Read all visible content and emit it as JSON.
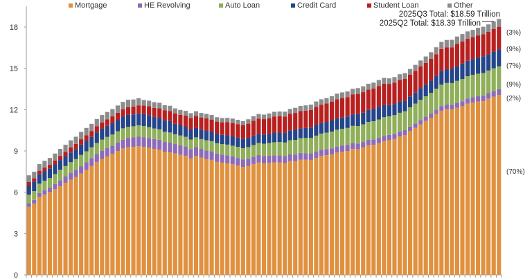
{
  "chart_data": {
    "type": "bar",
    "stacked": true,
    "title": "",
    "xlabel": "",
    "ylabel": "",
    "ylim": [
      0,
      19.5
    ],
    "yticks": [
      "0",
      "3",
      "6",
      "9",
      "12",
      "15",
      "18"
    ],
    "grid": false,
    "legend_position": "top",
    "series": [
      {
        "name": "Mortgage",
        "color": "#E0913F",
        "values": [
          4.94,
          5.18,
          5.66,
          5.84,
          6.0,
          6.22,
          6.44,
          6.68,
          6.9,
          7.1,
          7.36,
          7.62,
          7.9,
          8.2,
          8.4,
          8.6,
          8.78,
          9.0,
          9.18,
          9.27,
          9.3,
          9.35,
          9.29,
          9.23,
          9.15,
          9.1,
          8.95,
          8.9,
          8.82,
          8.73,
          8.64,
          8.45,
          8.64,
          8.52,
          8.4,
          8.35,
          8.2,
          8.15,
          8.1,
          8.03,
          7.93,
          7.84,
          7.9,
          8.05,
          8.17,
          8.1,
          8.13,
          8.17,
          8.17,
          8.12,
          8.26,
          8.25,
          8.37,
          8.36,
          8.35,
          8.48,
          8.63,
          8.69,
          8.74,
          8.88,
          8.94,
          9.0,
          9.14,
          9.12,
          9.24,
          9.41,
          9.44,
          9.56,
          9.71,
          9.78,
          9.86,
          10.04,
          10.16,
          10.44,
          10.67,
          10.93,
          11.18,
          11.39,
          11.67,
          11.92,
          12.04,
          12.01,
          12.14,
          12.25,
          12.44,
          12.52,
          12.59,
          12.61,
          12.8,
          12.94,
          13.07
        ]
      },
      {
        "name": "HE Revolving",
        "color": "#8E6BB8",
        "values": [
          0.24,
          0.26,
          0.28,
          0.3,
          0.33,
          0.37,
          0.42,
          0.46,
          0.49,
          0.51,
          0.53,
          0.55,
          0.57,
          0.59,
          0.6,
          0.6,
          0.61,
          0.62,
          0.64,
          0.66,
          0.68,
          0.7,
          0.71,
          0.71,
          0.71,
          0.71,
          0.7,
          0.7,
          0.68,
          0.68,
          0.68,
          0.67,
          0.64,
          0.63,
          0.63,
          0.62,
          0.61,
          0.59,
          0.58,
          0.57,
          0.56,
          0.55,
          0.54,
          0.53,
          0.53,
          0.53,
          0.52,
          0.51,
          0.51,
          0.5,
          0.49,
          0.49,
          0.49,
          0.48,
          0.47,
          0.47,
          0.46,
          0.45,
          0.45,
          0.44,
          0.44,
          0.43,
          0.42,
          0.42,
          0.41,
          0.4,
          0.4,
          0.39,
          0.39,
          0.39,
          0.38,
          0.36,
          0.35,
          0.33,
          0.33,
          0.32,
          0.32,
          0.32,
          0.33,
          0.34,
          0.34,
          0.34,
          0.35,
          0.36,
          0.37,
          0.38,
          0.38,
          0.39,
          0.4,
          0.4,
          0.41
        ]
      },
      {
        "name": "Auto Loan",
        "color": "#8FAF5A",
        "values": [
          0.64,
          0.64,
          0.68,
          0.7,
          0.7,
          0.73,
          0.77,
          0.76,
          0.79,
          0.8,
          0.82,
          0.8,
          0.79,
          0.79,
          0.82,
          0.82,
          0.8,
          0.81,
          0.82,
          0.82,
          0.81,
          0.81,
          0.81,
          0.79,
          0.77,
          0.76,
          0.74,
          0.74,
          0.71,
          0.71,
          0.71,
          0.71,
          0.71,
          0.71,
          0.74,
          0.74,
          0.75,
          0.76,
          0.78,
          0.78,
          0.81,
          0.81,
          0.84,
          0.85,
          0.88,
          0.89,
          0.92,
          0.95,
          0.97,
          0.99,
          1.03,
          1.06,
          1.07,
          1.1,
          1.13,
          1.16,
          1.17,
          1.19,
          1.21,
          1.22,
          1.23,
          1.24,
          1.26,
          1.27,
          1.28,
          1.3,
          1.32,
          1.33,
          1.35,
          1.34,
          1.36,
          1.37,
          1.37,
          1.4,
          1.44,
          1.46,
          1.47,
          1.5,
          1.52,
          1.55,
          1.56,
          1.58,
          1.6,
          1.61,
          1.62,
          1.63,
          1.64,
          1.66,
          1.64,
          1.66,
          1.66
        ]
      },
      {
        "name": "Credit Card",
        "color": "#24458A",
        "values": [
          0.69,
          0.69,
          0.69,
          0.7,
          0.7,
          0.7,
          0.71,
          0.72,
          0.71,
          0.73,
          0.75,
          0.78,
          0.76,
          0.77,
          0.79,
          0.8,
          0.82,
          0.83,
          0.85,
          0.87,
          0.86,
          0.87,
          0.87,
          0.87,
          0.84,
          0.84,
          0.83,
          0.83,
          0.76,
          0.74,
          0.73,
          0.73,
          0.69,
          0.69,
          0.69,
          0.7,
          0.67,
          0.67,
          0.67,
          0.68,
          0.66,
          0.67,
          0.67,
          0.68,
          0.66,
          0.67,
          0.68,
          0.7,
          0.68,
          0.7,
          0.71,
          0.73,
          0.71,
          0.73,
          0.75,
          0.78,
          0.76,
          0.78,
          0.81,
          0.83,
          0.82,
          0.83,
          0.84,
          0.87,
          0.85,
          0.87,
          0.88,
          0.93,
          0.89,
          0.82,
          0.81,
          0.82,
          0.77,
          0.79,
          0.8,
          0.86,
          0.84,
          0.89,
          0.93,
          0.99,
          0.99,
          1.03,
          1.08,
          1.13,
          1.12,
          1.14,
          1.17,
          1.21,
          1.18,
          1.21,
          1.23
        ]
      },
      {
        "name": "Student Loan",
        "color": "#B82020",
        "values": [
          0.24,
          0.24,
          0.25,
          0.25,
          0.26,
          0.28,
          0.3,
          0.31,
          0.36,
          0.37,
          0.39,
          0.39,
          0.43,
          0.45,
          0.46,
          0.48,
          0.5,
          0.51,
          0.53,
          0.55,
          0.58,
          0.58,
          0.61,
          0.64,
          0.66,
          0.68,
          0.72,
          0.73,
          0.76,
          0.77,
          0.81,
          0.84,
          0.87,
          0.88,
          0.9,
          0.87,
          0.9,
          0.91,
          0.96,
          0.97,
          0.99,
          0.99,
          1.03,
          1.08,
          1.11,
          1.12,
          1.13,
          1.16,
          1.19,
          1.19,
          1.2,
          1.23,
          1.26,
          1.26,
          1.28,
          1.31,
          1.34,
          1.34,
          1.36,
          1.38,
          1.41,
          1.41,
          1.44,
          1.46,
          1.49,
          1.48,
          1.5,
          1.51,
          1.54,
          1.54,
          1.55,
          1.56,
          1.58,
          1.57,
          1.58,
          1.58,
          1.59,
          1.59,
          1.57,
          1.6,
          1.6,
          1.57,
          1.6,
          1.6,
          1.6,
          1.59,
          1.61,
          1.61,
          1.63,
          1.64,
          1.65
        ]
      },
      {
        "name": "Other",
        "color": "#8C8C8C",
        "values": [
          0.48,
          0.48,
          0.48,
          0.49,
          0.5,
          0.51,
          0.51,
          0.52,
          0.52,
          0.52,
          0.53,
          0.53,
          0.52,
          0.52,
          0.54,
          0.53,
          0.53,
          0.53,
          0.54,
          0.55,
          0.51,
          0.52,
          0.41,
          0.41,
          0.41,
          0.41,
          0.38,
          0.38,
          0.36,
          0.35,
          0.34,
          0.34,
          0.33,
          0.33,
          0.33,
          0.33,
          0.32,
          0.31,
          0.31,
          0.32,
          0.31,
          0.31,
          0.32,
          0.33,
          0.33,
          0.33,
          0.34,
          0.35,
          0.34,
          0.35,
          0.36,
          0.37,
          0.37,
          0.38,
          0.38,
          0.39,
          0.39,
          0.39,
          0.4,
          0.41,
          0.41,
          0.41,
          0.41,
          0.42,
          0.42,
          0.42,
          0.42,
          0.43,
          0.42,
          0.4,
          0.4,
          0.42,
          0.42,
          0.42,
          0.43,
          0.42,
          0.46,
          0.48,
          0.51,
          0.52,
          0.53,
          0.54,
          0.54,
          0.54,
          0.53,
          0.53,
          0.55,
          0.54,
          0.54,
          0.55,
          0.56
        ]
      }
    ],
    "annotations": {
      "q3_total": "2025Q3 Total: $18.59 Trillion",
      "q2_total": "2025Q2 Total: $18.39 Trillion"
    },
    "share_labels": {
      "other": "(3%)",
      "student_loan": "(9%)",
      "credit_card": "(7%)",
      "auto_loan": "(9%)",
      "he_revolving": "(2%)",
      "mortgage": "(70%)"
    }
  }
}
